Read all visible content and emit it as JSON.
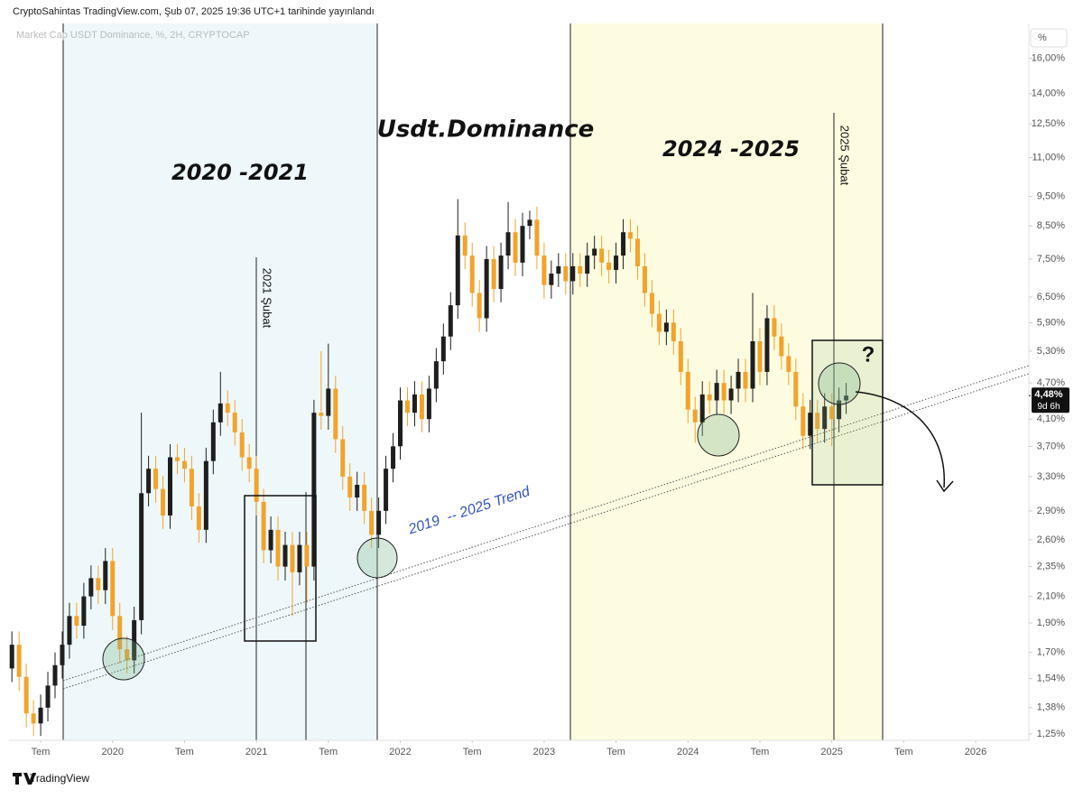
{
  "header": "CryptoSahintas TradingView.com, Şub 07, 2025 19:36 UTC+1 tarihinde yayınlandı",
  "footer": "TradingView",
  "chart_data": {
    "type": "candlestick",
    "title": "Market Cap USDT Dominance, %, 2H, CRYPTOCAP",
    "y_axis_label": "%",
    "ylog": true,
    "grid": false,
    "up_color": "#1e1e1e",
    "down_color": "#f2a32b",
    "x": [
      2019.3,
      2019.35,
      2019.4,
      2019.45,
      2019.5,
      2019.55,
      2019.6,
      2019.65,
      2019.7,
      2019.75,
      2019.8,
      2019.85,
      2019.9,
      2019.95,
      2020.0,
      2020.05,
      2020.1,
      2020.15,
      2020.2,
      2020.25,
      2020.3,
      2020.35,
      2020.4,
      2020.45,
      2020.5,
      2020.55,
      2020.6,
      2020.65,
      2020.7,
      2020.75,
      2020.8,
      2020.85,
      2020.9,
      2020.95,
      2021.0,
      2021.05,
      2021.1,
      2021.15,
      2021.2,
      2021.25,
      2021.3,
      2021.35,
      2021.4,
      2021.45,
      2021.5,
      2021.55,
      2021.6,
      2021.65,
      2021.7,
      2021.75,
      2021.8,
      2021.85,
      2021.9,
      2021.95,
      2022.0,
      2022.05,
      2022.1,
      2022.15,
      2022.2,
      2022.25,
      2022.3,
      2022.35,
      2022.4,
      2022.45,
      2022.5,
      2022.55,
      2022.6,
      2022.65,
      2022.7,
      2022.75,
      2022.8,
      2022.85,
      2022.9,
      2022.95,
      2023.0,
      2023.05,
      2023.1,
      2023.15,
      2023.2,
      2023.25,
      2023.3,
      2023.35,
      2023.4,
      2023.45,
      2023.5,
      2023.55,
      2023.6,
      2023.65,
      2023.7,
      2023.75,
      2023.8,
      2023.85,
      2023.9,
      2023.95,
      2024.0,
      2024.05,
      2024.1,
      2024.15,
      2024.2,
      2024.25,
      2024.3,
      2024.35,
      2024.4,
      2024.45,
      2024.5,
      2024.55,
      2024.6,
      2024.65,
      2024.7,
      2024.75,
      2024.8,
      2024.85,
      2024.9,
      2024.95,
      2025.0,
      2025.05,
      2025.1
    ],
    "open": [
      1.6,
      1.75,
      1.55,
      1.35,
      1.3,
      1.38,
      1.5,
      1.62,
      1.75,
      1.95,
      1.88,
      2.1,
      2.25,
      2.15,
      2.4,
      1.95,
      1.72,
      1.65,
      1.92,
      3.1,
      3.4,
      3.15,
      2.85,
      3.55,
      3.5,
      3.4,
      2.95,
      2.7,
      3.5,
      4.05,
      4.35,
      4.2,
      3.9,
      3.55,
      3.4,
      3.0,
      2.5,
      2.7,
      2.35,
      2.55,
      2.3,
      2.55,
      2.35,
      4.2,
      4.15,
      4.6,
      3.8,
      3.3,
      3.05,
      3.2,
      2.9,
      2.65,
      2.9,
      3.4,
      3.7,
      4.4,
      4.2,
      4.5,
      4.1,
      4.6,
      5.1,
      5.6,
      6.3,
      8.2,
      7.6,
      6.6,
      6.0,
      7.5,
      6.7,
      7.6,
      8.3,
      7.4,
      8.5,
      8.7,
      7.6,
      6.8,
      7.1,
      7.3,
      6.9,
      7.3,
      7.1,
      7.6,
      7.8,
      7.4,
      7.2,
      7.6,
      8.3,
      8.1,
      7.3,
      6.6,
      6.1,
      5.7,
      5.9,
      5.5,
      4.9,
      4.25,
      4.05,
      4.5,
      4.4,
      4.7,
      4.4,
      4.6,
      4.9,
      4.6,
      5.5,
      4.9,
      6.0,
      5.6,
      5.2,
      4.9,
      4.3,
      3.85,
      4.2,
      3.95,
      4.3,
      4.1,
      4.4
    ],
    "high": [
      1.84,
      1.84,
      1.63,
      1.42,
      1.45,
      1.58,
      1.7,
      1.84,
      2.05,
      2.05,
      2.21,
      2.36,
      2.36,
      2.52,
      2.52,
      2.05,
      1.81,
      2.02,
      4.2,
      3.57,
      3.57,
      3.31,
      3.73,
      3.73,
      3.68,
      3.57,
      3.1,
      3.68,
      4.25,
      4.9,
      4.57,
      4.41,
      4.1,
      3.73,
      3.57,
      3.15,
      2.84,
      2.84,
      2.68,
      2.68,
      2.68,
      2.68,
      4.41,
      5.3,
      5.45,
      4.83,
      3.99,
      3.47,
      3.36,
      3.36,
      3.05,
      3.05,
      3.57,
      3.89,
      4.62,
      4.62,
      4.73,
      4.73,
      4.83,
      5.36,
      5.88,
      6.62,
      9.4,
      8.61,
      7.98,
      6.93,
      7.88,
      7.88,
      7.98,
      9.3,
      8.72,
      8.93,
      9.0,
      9.14,
      7.98,
      7.46,
      7.67,
      7.67,
      7.67,
      7.67,
      7.98,
      8.19,
      8.19,
      7.77,
      7.98,
      8.72,
      8.72,
      8.51,
      7.67,
      6.93,
      6.41,
      6.2,
      6.2,
      5.78,
      5.15,
      4.46,
      4.73,
      4.73,
      4.94,
      4.94,
      4.83,
      5.15,
      5.15,
      6.6,
      5.78,
      6.3,
      6.3,
      5.88,
      5.46,
      5.15,
      4.52,
      4.41,
      4.41,
      4.52,
      4.52,
      4.62,
      4.7
    ],
    "low": [
      1.52,
      1.47,
      1.28,
      1.24,
      1.24,
      1.31,
      1.43,
      1.54,
      1.66,
      1.79,
      1.79,
      2.0,
      2.04,
      2.04,
      1.85,
      1.63,
      1.57,
      1.57,
      1.82,
      2.95,
      2.99,
      2.71,
      2.71,
      3.33,
      3.23,
      2.8,
      2.57,
      2.57,
      3.33,
      3.85,
      3.99,
      3.71,
      3.37,
      3.23,
      2.85,
      2.38,
      2.38,
      2.23,
      2.23,
      1.95,
      2.19,
      2.05,
      2.23,
      3.94,
      3.94,
      3.61,
      3.14,
      2.9,
      2.9,
      2.76,
      2.52,
      2.52,
      2.76,
      3.23,
      3.52,
      3.99,
      3.99,
      3.9,
      3.9,
      4.37,
      4.85,
      5.32,
      5.99,
      7.22,
      6.27,
      5.7,
      5.7,
      6.37,
      6.37,
      7.22,
      7.03,
      7.03,
      8.08,
      7.22,
      6.46,
      6.46,
      6.75,
      6.56,
      6.56,
      6.75,
      6.75,
      7.22,
      7.03,
      6.84,
      6.84,
      7.22,
      7.7,
      6.94,
      6.27,
      5.8,
      5.42,
      5.42,
      5.23,
      4.66,
      4.04,
      3.75,
      3.85,
      4.18,
      4.18,
      4.18,
      4.18,
      4.37,
      4.37,
      4.37,
      4.66,
      4.66,
      5.32,
      4.94,
      4.66,
      4.09,
      3.66,
      3.66,
      3.75,
      3.75,
      3.7,
      3.9,
      4.18
    ],
    "close": [
      1.75,
      1.55,
      1.35,
      1.3,
      1.38,
      1.5,
      1.62,
      1.75,
      1.95,
      1.88,
      2.1,
      2.25,
      2.15,
      2.4,
      1.95,
      1.72,
      1.65,
      1.92,
      3.1,
      3.4,
      3.15,
      2.85,
      3.55,
      3.5,
      3.4,
      2.95,
      2.7,
      3.5,
      4.05,
      4.35,
      4.2,
      3.9,
      3.55,
      3.4,
      3.0,
      2.5,
      2.7,
      2.35,
      2.55,
      2.3,
      2.55,
      2.35,
      4.2,
      4.15,
      4.6,
      3.8,
      3.3,
      3.05,
      3.2,
      2.9,
      2.65,
      2.9,
      3.4,
      3.7,
      4.4,
      4.2,
      4.5,
      4.1,
      4.6,
      5.1,
      5.6,
      6.3,
      8.2,
      7.6,
      6.6,
      6.0,
      7.5,
      6.7,
      7.6,
      8.3,
      7.4,
      8.5,
      8.7,
      7.6,
      6.8,
      7.1,
      7.3,
      6.9,
      7.3,
      7.1,
      7.6,
      7.8,
      7.4,
      7.2,
      7.6,
      8.3,
      8.1,
      7.3,
      6.6,
      6.1,
      5.7,
      5.9,
      5.5,
      4.9,
      4.25,
      4.05,
      4.5,
      4.4,
      4.7,
      4.4,
      4.6,
      4.9,
      4.6,
      5.5,
      4.9,
      6.0,
      5.6,
      5.2,
      4.9,
      4.3,
      3.85,
      4.2,
      3.95,
      4.3,
      4.1,
      4.4,
      4.48
    ],
    "xlim": [
      2019.28,
      2026.37
    ],
    "xticks": [
      {
        "value": 2019.5,
        "label": "Tem"
      },
      2020,
      {
        "value": 2020.5,
        "label": "Tem"
      },
      2021,
      {
        "value": 2021.5,
        "label": "Tem"
      },
      2022,
      {
        "value": 2022.5,
        "label": "Tem"
      },
      2023,
      {
        "value": 2023.5,
        "label": "Tem"
      },
      2024,
      {
        "value": 2024.5,
        "label": "Tem"
      },
      2025,
      {
        "value": 2025.5,
        "label": "Tem"
      },
      2026
    ],
    "ylim": [
      1.22,
      18.0
    ],
    "yticks": [
      {
        "value": 1.25,
        "label": "1,25%"
      },
      {
        "value": 1.38,
        "label": "1,38%"
      },
      {
        "value": 1.54,
        "label": "1,54%"
      },
      {
        "value": 1.7,
        "label": "1,70%"
      },
      {
        "value": 1.9,
        "label": "1,90%"
      },
      {
        "value": 2.1,
        "label": "2,10%"
      },
      {
        "value": 2.35,
        "label": "2,35%"
      },
      {
        "value": 2.6,
        "label": "2,60%"
      },
      {
        "value": 2.9,
        "label": "2,90%"
      },
      {
        "value": 3.3,
        "label": "3,30%"
      },
      {
        "value": 3.7,
        "label": "3,70%"
      },
      {
        "value": 4.1,
        "label": "4,10%"
      },
      {
        "value": 4.7,
        "label": "4,70%"
      },
      {
        "value": 5.3,
        "label": "5,30%"
      },
      {
        "value": 5.9,
        "label": "5,90%"
      },
      {
        "value": 6.5,
        "label": "6,50%"
      },
      {
        "value": 7.5,
        "label": "7,50%"
      },
      {
        "value": 8.5,
        "label": "8,50%"
      },
      {
        "value": 9.5,
        "label": "9,50%"
      },
      {
        "value": 11,
        "label": "11,00%"
      },
      {
        "value": 12.5,
        "label": "12,50%"
      },
      {
        "value": 14,
        "label": "14,00%"
      },
      {
        "value": 16,
        "label": "16,00%"
      }
    ],
    "last_price": {
      "value": 4.48,
      "label": "4,48%"
    },
    "countdown": "9d 6h",
    "annotations": [
      "Usdt.Dominance",
      "2020 -2021",
      "2024 -2025",
      "2021 Şubat",
      "2025 Şubat",
      "2019  -- 2025 Trend",
      "?"
    ]
  }
}
